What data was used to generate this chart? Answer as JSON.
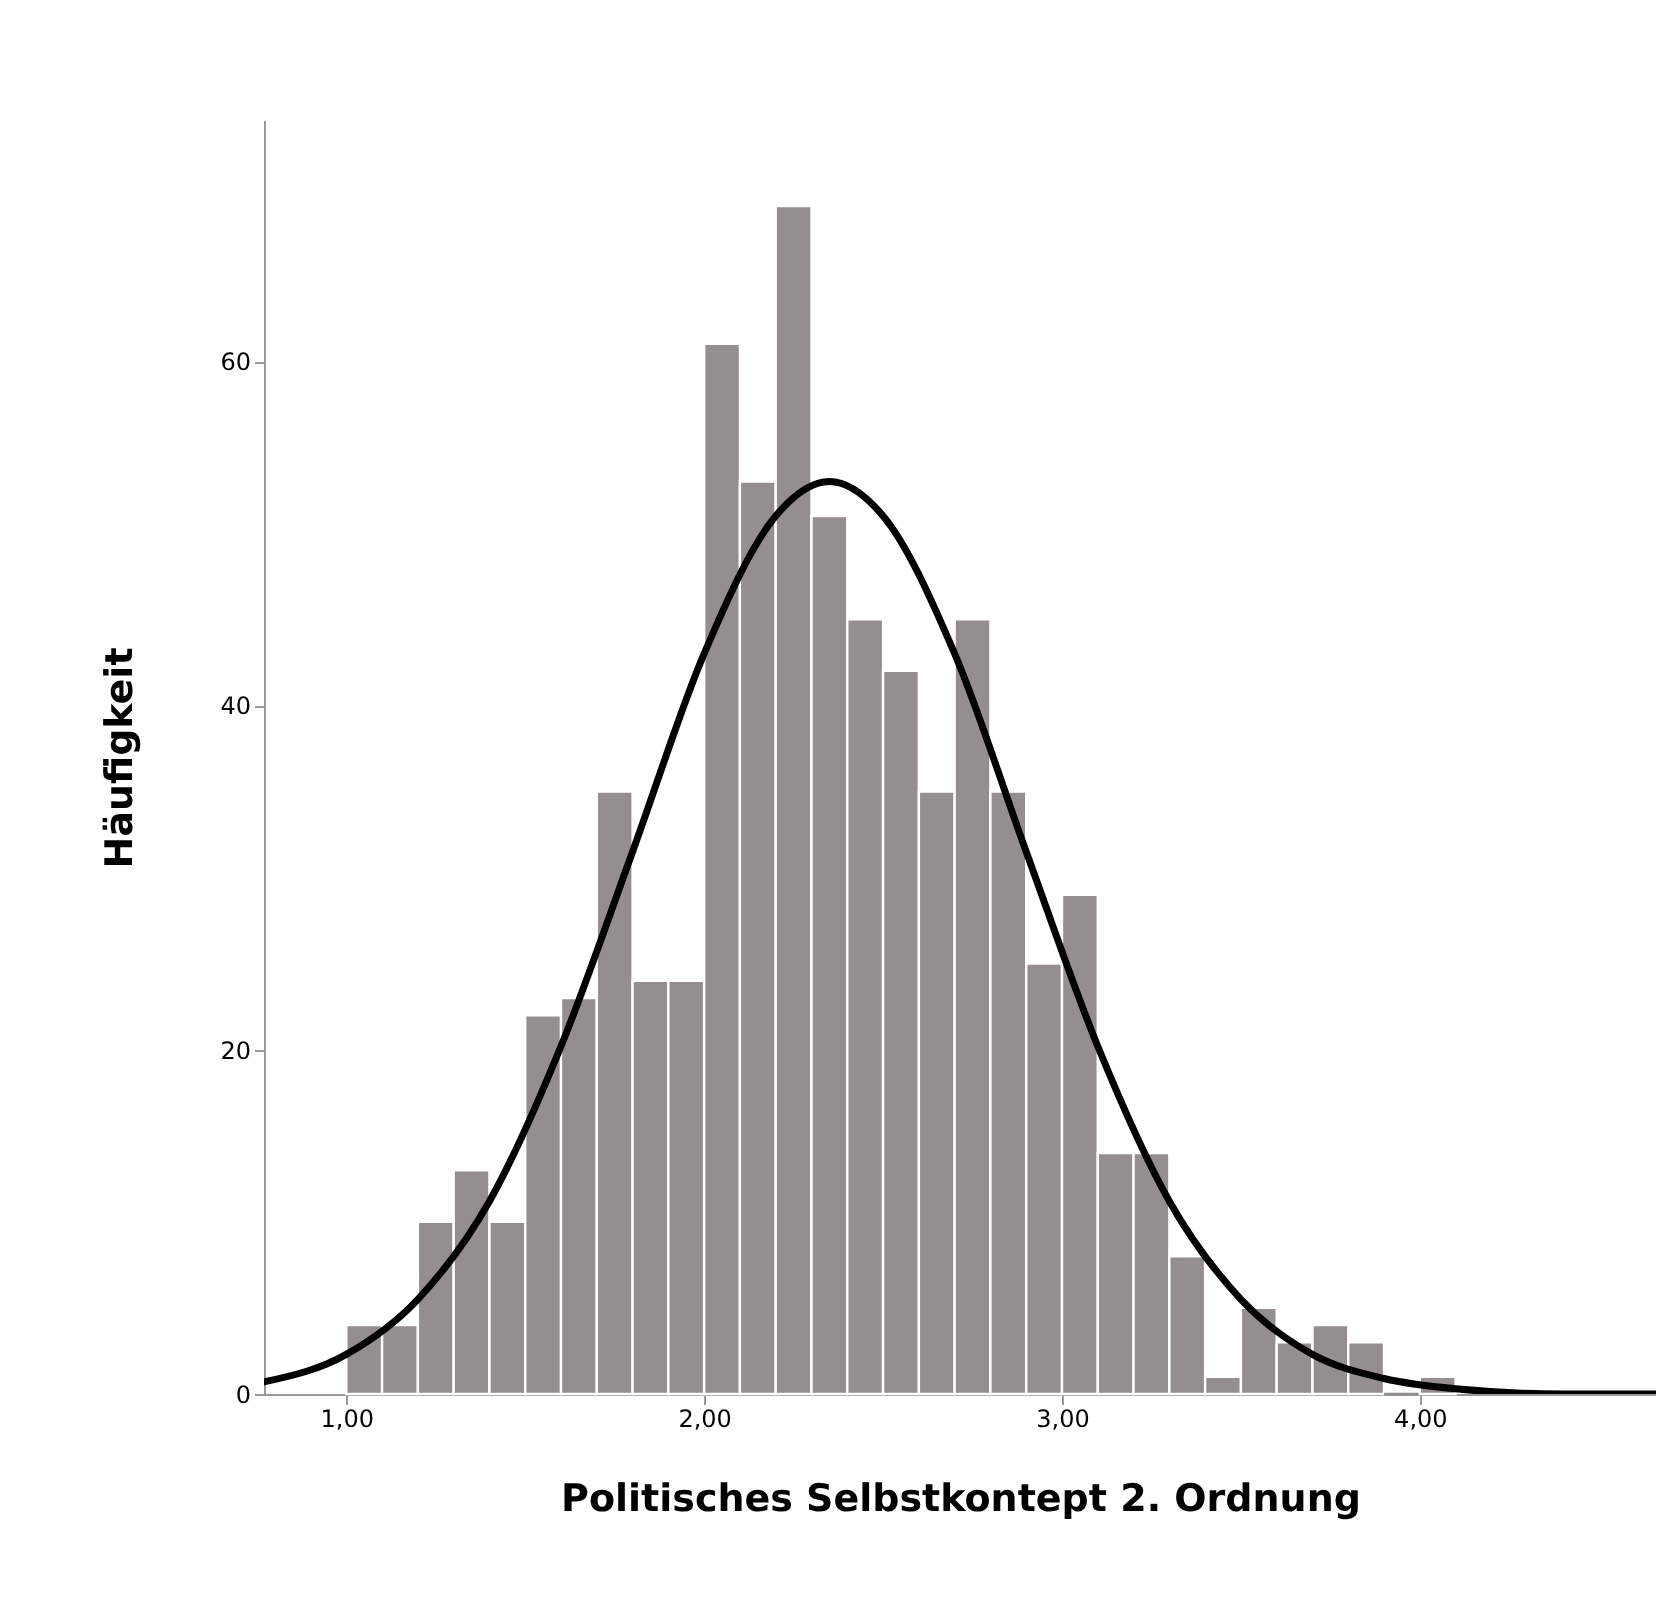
{
  "chart_data": {
    "type": "histogram",
    "xlabel": "Politisches Selbstkontept 2. Ordnung",
    "ylabel": "Häufigkeit",
    "bins": [
      1.0,
      1.1,
      1.2,
      1.3,
      1.4,
      1.5,
      1.6,
      1.7,
      1.8,
      1.9,
      2.0,
      2.1,
      2.2,
      2.3,
      2.4,
      2.5,
      2.6,
      2.7,
      2.8,
      2.9,
      3.0,
      3.1,
      3.2,
      3.3,
      3.4,
      3.5,
      3.6,
      3.7,
      3.8,
      3.9,
      4.0,
      4.1
    ],
    "values": [
      4,
      4,
      10,
      13,
      10,
      22,
      23,
      35,
      24,
      24,
      61,
      53,
      69,
      51,
      45,
      42,
      35,
      45,
      35,
      25,
      29,
      14,
      14,
      8,
      1,
      5,
      3,
      4,
      3,
      0,
      1
    ],
    "color": "#948e8e",
    "series": [
      {
        "type": "line",
        "color": "#000000",
        "x": [
          0.77,
          1.0,
          1.2,
          1.4,
          1.6,
          1.8,
          2.0,
          2.2,
          2.35,
          2.5,
          2.7,
          2.9,
          3.1,
          3.3,
          3.5,
          3.7,
          3.9,
          4.1,
          4.4,
          4.66
        ],
        "values": [
          0.7,
          2.3,
          5.5,
          11.2,
          20.2,
          31.5,
          43,
          51,
          53,
          51,
          43,
          31.5,
          20.2,
          11.2,
          5.5,
          2.3,
          0.9,
          0.3,
          0,
          0
        ]
      }
    ],
    "marker": "none",
    "line_style": "solid",
    "xlim": [
      0.77,
      4.66
    ],
    "ylim": [
      0,
      74
    ],
    "xticks": [
      {
        "value": 1,
        "label": "1,00"
      },
      {
        "value": 2,
        "label": "2,00"
      },
      {
        "value": 3,
        "label": "3,00"
      },
      {
        "value": 4,
        "label": "4,00"
      }
    ],
    "yticks": [
      0,
      20,
      40,
      60
    ],
    "grid": false
  }
}
